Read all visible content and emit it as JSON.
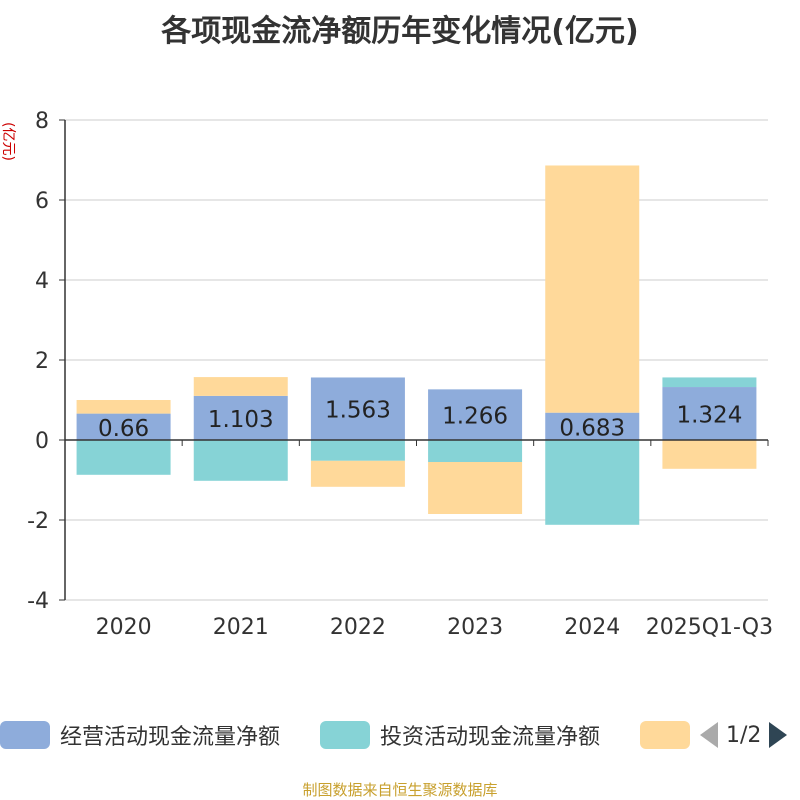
{
  "title": "各项现金流净额历年变化情况(亿元)",
  "source_note": "制图数据来自恒生聚源数据库",
  "legend": {
    "items": [
      {
        "label": "经营活动现金流量净额",
        "color": "#8eacdb"
      },
      {
        "label": "投资活动现金流量净额",
        "color": "#86d3d6"
      },
      {
        "label": "",
        "color": "#ffd99a"
      }
    ],
    "page": "1/2"
  },
  "chart_data": {
    "type": "bar",
    "stacked": true,
    "title": "各项现金流净额历年变化情况(亿元)",
    "ylabel": "(亿元)",
    "ylim": [
      -4,
      8
    ],
    "yticks": [
      -4,
      -2,
      0,
      2,
      4,
      6,
      8
    ],
    "categories": [
      "2020",
      "2021",
      "2022",
      "2023",
      "2024",
      "2025Q1-Q3"
    ],
    "series": [
      {
        "name": "经营活动现金流量净额",
        "color": "#8eacdb",
        "values": [
          0.66,
          1.103,
          1.563,
          1.266,
          0.683,
          1.324
        ],
        "labels": [
          "0.66",
          "1.103",
          "1.563",
          "1.266",
          "0.683",
          "1.324"
        ]
      },
      {
        "name": "投资活动现金流量净额",
        "color": "#86d3d6",
        "values": [
          -0.87,
          -1.02,
          -0.52,
          -0.55,
          -2.12,
          0.24
        ]
      },
      {
        "name": "",
        "color": "#ffd99a",
        "values": [
          0.34,
          0.47,
          -0.65,
          -1.3,
          6.18,
          -0.72
        ]
      }
    ]
  }
}
